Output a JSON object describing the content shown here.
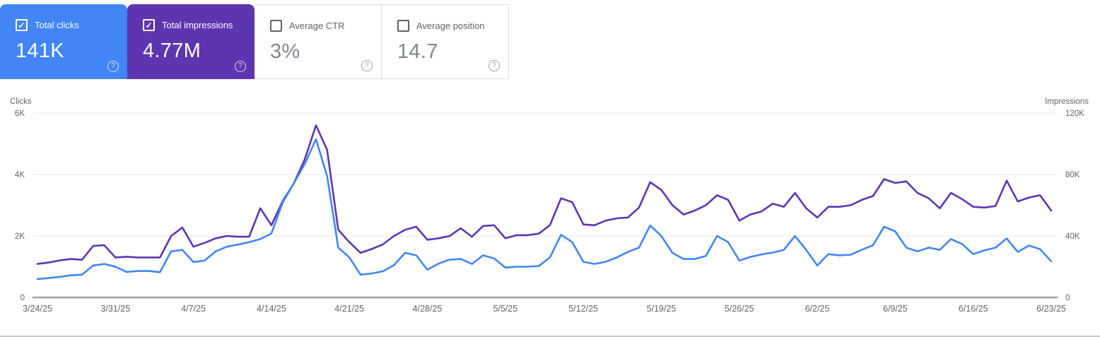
{
  "app": "Search Console Performance",
  "colors": {
    "clicks_accent": "#4285f4",
    "impressions_accent": "#5e35b1",
    "muted_text": "#5f6368",
    "value_muted": "#80868b",
    "gridline": "#e8eaed",
    "baseline": "#9aa0a6",
    "card_border": "#dadce0"
  },
  "icons": {
    "check": "✓",
    "help": "?"
  },
  "cards": [
    {
      "label": "Total clicks",
      "value": "141K",
      "selected": true,
      "bg": "#4285f4"
    },
    {
      "label": "Total impressions",
      "value": "4.77M",
      "selected": true,
      "bg": "#5e35b1"
    },
    {
      "label": "Average CTR",
      "value": "3%",
      "selected": false,
      "bg": "#ffffff"
    },
    {
      "label": "Average position",
      "value": "14.7",
      "selected": false,
      "bg": "#ffffff"
    }
  ],
  "chart_data": {
    "type": "line",
    "grid": "horizontal",
    "left_axis": {
      "title": "Clicks",
      "ticks": [
        "0",
        "2K",
        "4K",
        "6K"
      ],
      "range_k": [
        0,
        6
      ]
    },
    "right_axis": {
      "title": "Impressions",
      "ticks": [
        "0",
        "40K",
        "80K",
        "120K"
      ],
      "range_k": [
        0,
        120
      ]
    },
    "x_tick_labels": [
      "3/24/25",
      "3/31/25",
      "4/7/25",
      "4/14/25",
      "4/21/25",
      "4/28/25",
      "5/5/25",
      "5/12/25",
      "5/19/25",
      "5/26/25",
      "6/2/25",
      "6/9/25",
      "6/16/25",
      "6/23/25"
    ],
    "x_start": "3/24/25",
    "x_end": "6/23/25",
    "points_per_series": 92,
    "series": [
      {
        "name": "Clicks",
        "color": "#4285f4",
        "axis": "left",
        "unit": "K",
        "values_k": [
          0.6,
          0.63,
          0.67,
          0.72,
          0.74,
          1.04,
          1.09,
          1.0,
          0.83,
          0.86,
          0.86,
          0.82,
          1.5,
          1.55,
          1.15,
          1.2,
          1.5,
          1.65,
          1.72,
          1.8,
          1.9,
          2.08,
          3.08,
          3.7,
          4.35,
          5.15,
          3.95,
          1.62,
          1.3,
          0.74,
          0.78,
          0.85,
          1.05,
          1.45,
          1.37,
          0.9,
          1.1,
          1.23,
          1.25,
          1.09,
          1.37,
          1.27,
          0.97,
          1.0,
          1.0,
          1.02,
          1.3,
          2.04,
          1.8,
          1.16,
          1.09,
          1.16,
          1.3,
          1.48,
          1.62,
          2.34,
          2.0,
          1.45,
          1.25,
          1.25,
          1.35,
          2.0,
          1.8,
          1.2,
          1.32,
          1.4,
          1.46,
          1.55,
          2.0,
          1.55,
          1.04,
          1.41,
          1.37,
          1.39,
          1.55,
          1.7,
          2.3,
          2.15,
          1.62,
          1.5,
          1.62,
          1.55,
          1.9,
          1.74,
          1.41,
          1.53,
          1.62,
          1.92,
          1.48,
          1.69,
          1.57,
          1.18
        ]
      },
      {
        "name": "Impressions",
        "color": "#5e35b1",
        "axis": "right",
        "unit": "K",
        "values_k": [
          21.8,
          22.7,
          24.1,
          25.0,
          24.5,
          33.5,
          34.0,
          26.0,
          26.5,
          26.0,
          26.0,
          26.0,
          40.0,
          45.5,
          33.0,
          35.5,
          38.5,
          40.0,
          39.5,
          39.5,
          58.0,
          47.0,
          62.5,
          74.0,
          90.0,
          112.0,
          96.0,
          44.0,
          36.0,
          29.0,
          31.5,
          34.5,
          40.0,
          44.0,
          46.0,
          37.5,
          38.5,
          40.0,
          45.0,
          39.5,
          46.5,
          47.0,
          38.5,
          40.5,
          40.5,
          41.5,
          47.0,
          64.5,
          62.0,
          47.5,
          47.0,
          50.0,
          51.5,
          52.0,
          58.5,
          75.0,
          70.0,
          60.0,
          54.0,
          56.5,
          60.0,
          66.5,
          63.5,
          50.0,
          54.0,
          56.0,
          61.0,
          59.0,
          68.0,
          58.0,
          52.0,
          59.0,
          59.0,
          60.0,
          63.5,
          66.0,
          77.0,
          74.5,
          75.5,
          68.0,
          64.5,
          58.0,
          68.0,
          64.0,
          59.0,
          58.5,
          59.5,
          76.0,
          62.5,
          65.0,
          66.5,
          56.5
        ]
      }
    ]
  }
}
